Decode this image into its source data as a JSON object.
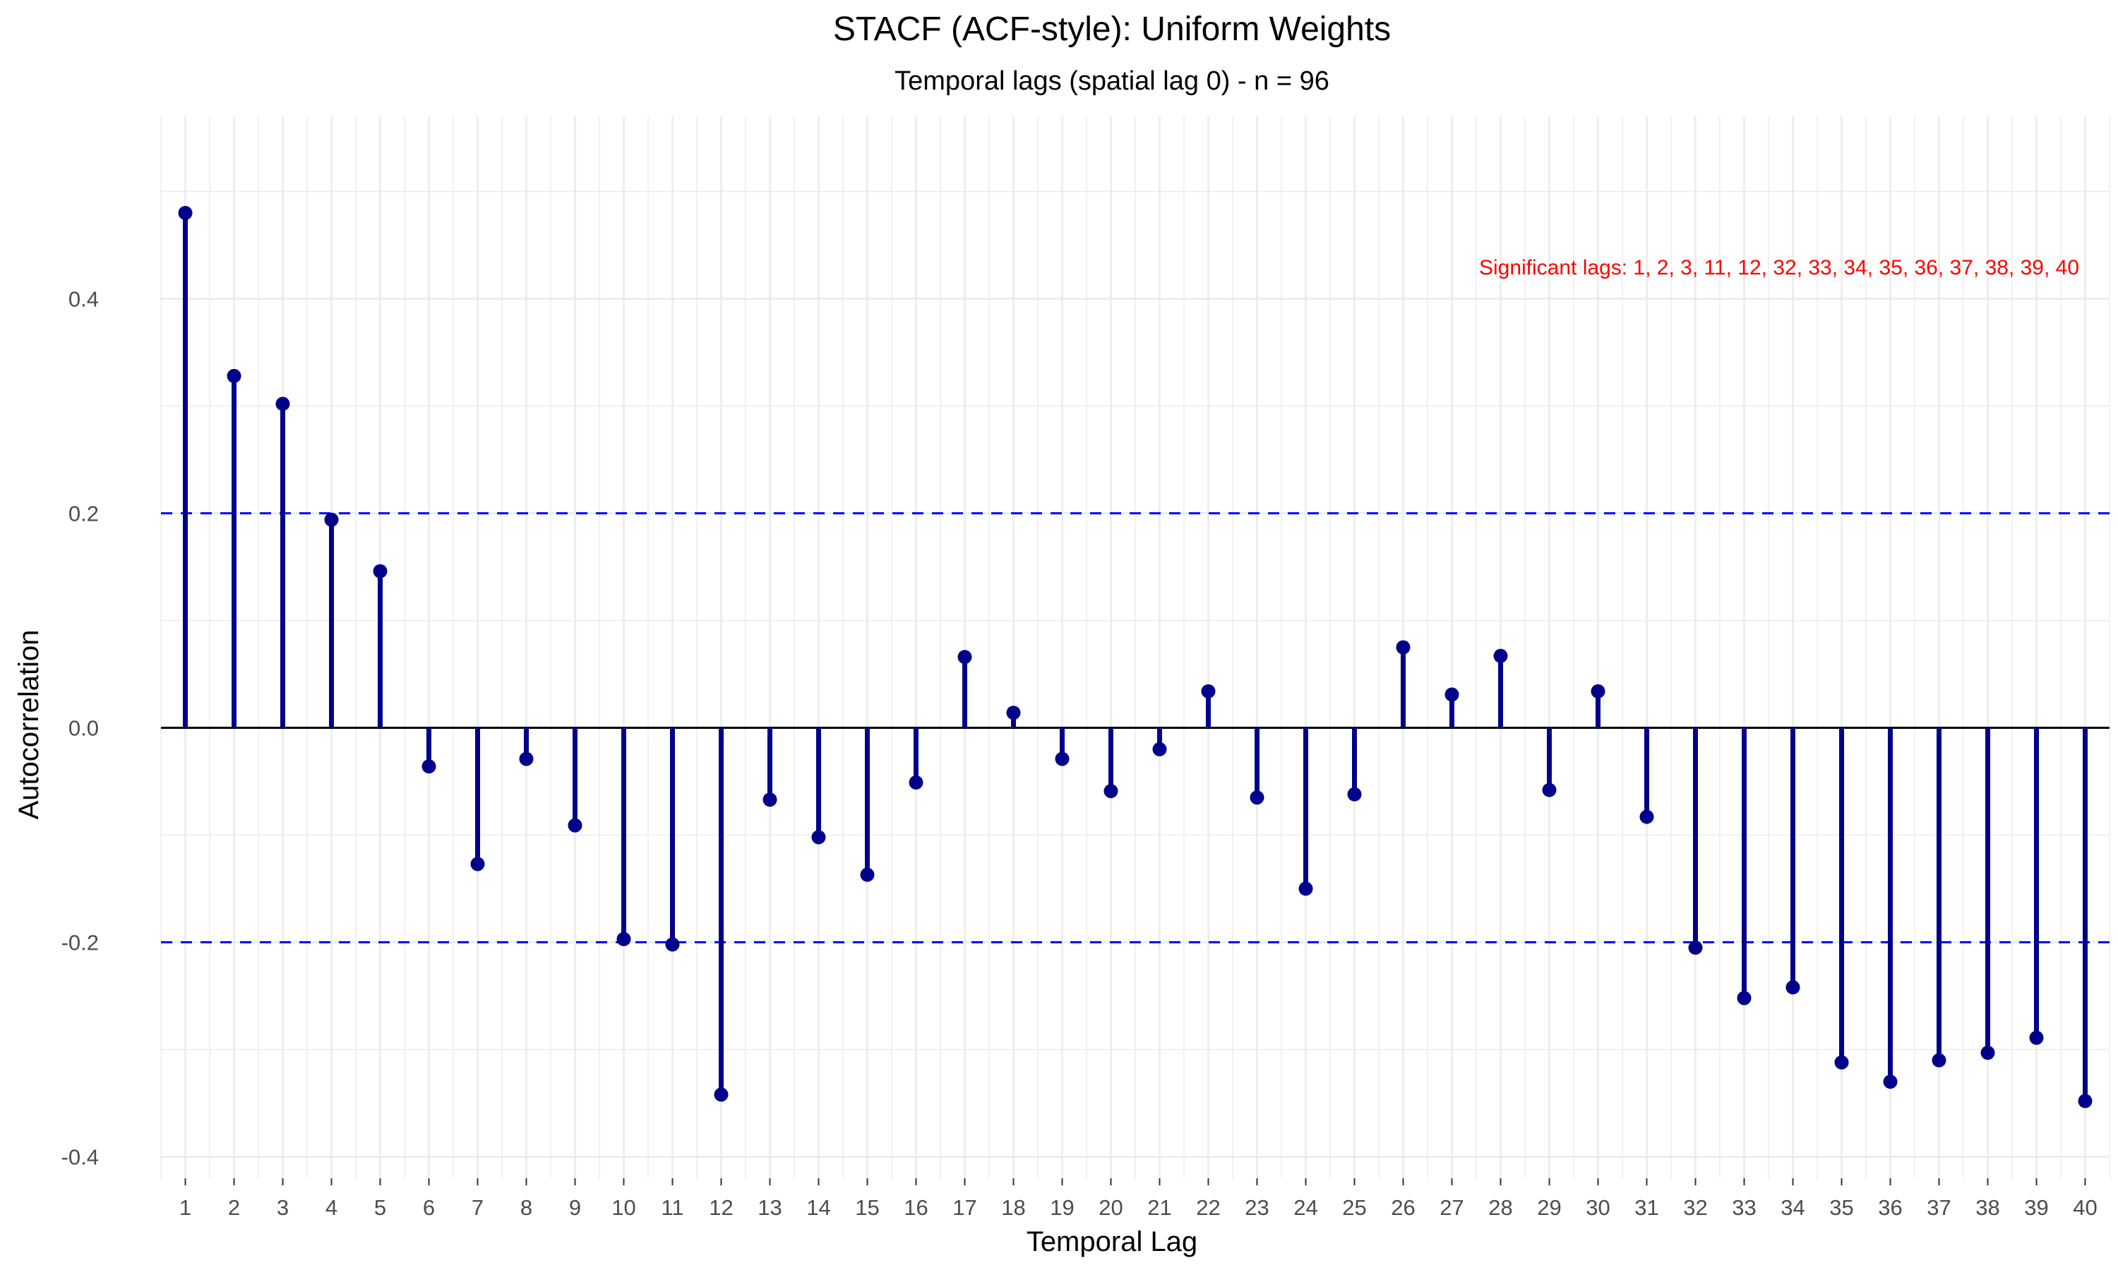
{
  "chart_data": {
    "type": "bar",
    "title": "STACF (ACF-style): Uniform Weights",
    "subtitle": "Temporal lags (spatial lag 0) - n = 96",
    "xlabel": "Temporal Lag",
    "ylabel": "Autocorrelation",
    "x": [
      1,
      2,
      3,
      4,
      5,
      6,
      7,
      8,
      9,
      10,
      11,
      12,
      13,
      14,
      15,
      16,
      17,
      18,
      19,
      20,
      21,
      22,
      23,
      24,
      25,
      26,
      27,
      28,
      29,
      30,
      31,
      32,
      33,
      34,
      35,
      36,
      37,
      38,
      39,
      40
    ],
    "values": [
      0.48,
      0.328,
      0.302,
      0.194,
      0.146,
      -0.036,
      -0.127,
      -0.029,
      -0.091,
      -0.197,
      -0.202,
      -0.342,
      -0.067,
      -0.102,
      -0.137,
      -0.051,
      0.066,
      0.014,
      -0.029,
      -0.059,
      -0.02,
      0.034,
      -0.065,
      -0.15,
      -0.062,
      0.075,
      0.031,
      0.067,
      -0.058,
      0.034,
      -0.083,
      -0.205,
      -0.252,
      -0.242,
      -0.312,
      -0.33,
      -0.31,
      -0.303,
      -0.289,
      -0.348
    ],
    "xlim": [
      0.5,
      40.5
    ],
    "ylim": [
      -0.42,
      0.57
    ],
    "yticks": [
      -0.4,
      -0.2,
      0.0,
      0.2,
      0.4
    ],
    "ytick_labels": [
      "-0.4",
      "-0.2",
      "0.0",
      "0.2",
      "0.4"
    ],
    "confidence_bounds": [
      0.2,
      -0.2
    ],
    "annotation": "Significant lags: 1, 2, 3, 11, 12, 32, 33, 34, 35, 36, 37, 38, 39, 40",
    "grid": true,
    "colors": {
      "stem": "#00008B",
      "point": "#00008B",
      "confidence": "#0000FF",
      "zero_line": "#000000",
      "annotation": "#FF0000",
      "grid": "#EBEBEB"
    }
  }
}
